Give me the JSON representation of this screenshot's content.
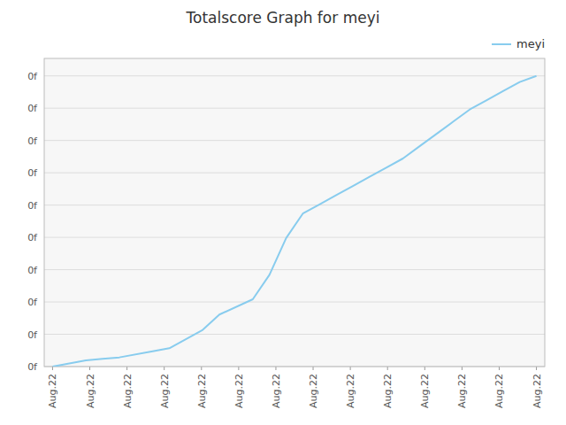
{
  "chart_data": {
    "type": "line",
    "title": "Totalscore Graph for meyi",
    "x": [
      0,
      2,
      3,
      4,
      6,
      7,
      9,
      10,
      12,
      13,
      14,
      15,
      16,
      17,
      18,
      19,
      20,
      21,
      22,
      23,
      24,
      25,
      26,
      27,
      28,
      29
    ],
    "series": [
      {
        "name": "meyi",
        "color": "#88ccee",
        "values": [
          0,
          0.02,
          0.025,
          0.03,
          0.05,
          0.06,
          0.12,
          0.17,
          0.22,
          0.3,
          0.42,
          0.5,
          0.53,
          0.56,
          0.59,
          0.62,
          0.65,
          0.68,
          0.72,
          0.76,
          0.8,
          0.84,
          0.87,
          0.9,
          0.93,
          0.95
        ]
      }
    ],
    "xlim": [
      -0.5,
      29.5
    ],
    "ylim": [
      0,
      1.007
    ],
    "xticks": [
      {
        "value": 0,
        "label": "Aug.22"
      },
      {
        "value": 2.230769230769231,
        "label": "Aug.22"
      },
      {
        "value": 4.461538461538462,
        "label": "Aug.22"
      },
      {
        "value": 6.6923076923076925,
        "label": "Aug.22"
      },
      {
        "value": 8.923076923076923,
        "label": "Aug.22"
      },
      {
        "value": 11.153846153846153,
        "label": "Aug.22"
      },
      {
        "value": 13.384615384615385,
        "label": "Aug.22"
      },
      {
        "value": 15.615384615384615,
        "label": "Aug.22"
      },
      {
        "value": 17.846153846153847,
        "label": "Aug.22"
      },
      {
        "value": 20.076923076923077,
        "label": "Aug.22"
      },
      {
        "value": 22.307692307692307,
        "label": "Aug.22"
      },
      {
        "value": 24.53846153846154,
        "label": "Aug.22"
      },
      {
        "value": 26.76923076923077,
        "label": "Aug.22"
      },
      {
        "value": 29,
        "label": "Aug.22"
      }
    ],
    "yticks": [
      {
        "value": 0,
        "label": "0f"
      },
      {
        "value": 0.10555555555555556,
        "label": "0f"
      },
      {
        "value": 0.2111111111111111,
        "label": "0f"
      },
      {
        "value": 0.31666666666666665,
        "label": "0f"
      },
      {
        "value": 0.4222222222222222,
        "label": "0f"
      },
      {
        "value": 0.5277777777777778,
        "label": "0f"
      },
      {
        "value": 0.6333333333333333,
        "label": "0f"
      },
      {
        "value": 0.7388888888888889,
        "label": "0f"
      },
      {
        "value": 0.8444444444444444,
        "label": "0f"
      },
      {
        "value": 0.95,
        "label": "0f"
      }
    ],
    "grid": true,
    "legend": "top-right"
  }
}
